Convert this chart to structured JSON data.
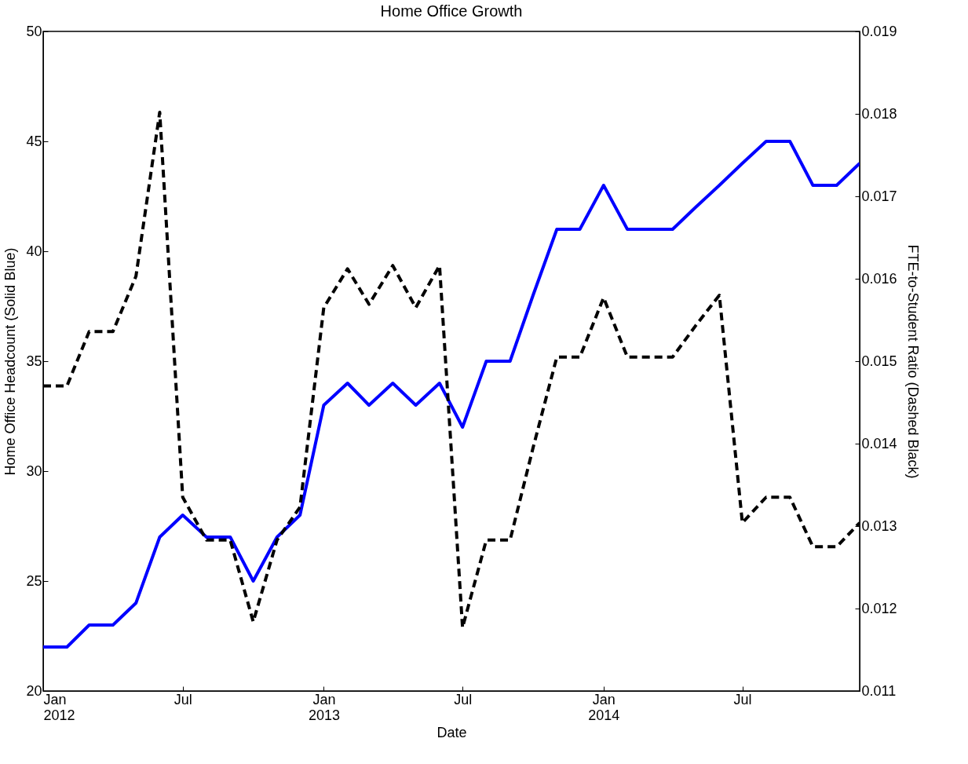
{
  "chart_data": {
    "type": "line",
    "title": "Home Office Growth",
    "xlabel": "Date",
    "ylabel": "Home Office Headcount (Solid Blue)",
    "y2label": "FTE-to-Student Ratio (Dashed Black)",
    "x": [
      "2012-01",
      "2012-02",
      "2012-03",
      "2012-04",
      "2012-05",
      "2012-06",
      "2012-07",
      "2012-08",
      "2012-09",
      "2012-10",
      "2012-11",
      "2012-12",
      "2013-01",
      "2013-02",
      "2013-03",
      "2013-04",
      "2013-05",
      "2013-06",
      "2013-07",
      "2013-08",
      "2013-09",
      "2013-10",
      "2013-11",
      "2013-12",
      "2014-01",
      "2014-02",
      "2014-03",
      "2014-04",
      "2014-05",
      "2014-06",
      "2014-07",
      "2014-08",
      "2014-09",
      "2014-10",
      "2014-11",
      "2014-12"
    ],
    "series": [
      {
        "color": "#0000ff",
        "line_style": "solid",
        "values": [
          22,
          22,
          23,
          23,
          24,
          27,
          28,
          27,
          27,
          25,
          27,
          28,
          33,
          34,
          33,
          34,
          33,
          34,
          32,
          35,
          35,
          38,
          41,
          41,
          43,
          41,
          41,
          41,
          42,
          43,
          44,
          45,
          45,
          43,
          43,
          44
        ]
      },
      {
        "color": "#000000",
        "line_style": "dashed",
        "axis": "y2",
        "values": [
          0.0147,
          0.0147,
          0.01536,
          0.01536,
          0.01603,
          0.01802,
          0.01335,
          0.01283,
          0.01283,
          0.01184,
          0.01283,
          0.01323,
          0.01565,
          0.01612,
          0.01569,
          0.01616,
          0.01565,
          0.01616,
          0.01177,
          0.01283,
          0.01283,
          0.01395,
          0.01505,
          0.01505,
          0.01577,
          0.01505,
          0.01505,
          0.01505,
          0.01543,
          0.0158,
          0.01304,
          0.01335,
          0.01335,
          0.01275,
          0.01275,
          0.01304
        ]
      }
    ],
    "xlim": [
      "2012-01",
      "2014-12"
    ],
    "xticks": [
      {
        "value": "2012-01",
        "label": "Jan 2012"
      },
      {
        "value": "2012-07",
        "label": "Jul"
      },
      {
        "value": "2013-01",
        "label": "Jan 2013"
      },
      {
        "value": "2013-07",
        "label": "Jul"
      },
      {
        "value": "2014-01",
        "label": "Jan 2014"
      },
      {
        "value": "2014-07",
        "label": "Jul"
      }
    ],
    "ylim": [
      20,
      50
    ],
    "yticks": [
      20,
      25,
      30,
      35,
      40,
      45,
      50
    ],
    "y2lim": [
      0.011,
      0.019
    ],
    "y2ticks": [
      0.011,
      0.012,
      0.013,
      0.014,
      0.015,
      0.016,
      0.017,
      0.018,
      0.019
    ],
    "grid": false
  }
}
